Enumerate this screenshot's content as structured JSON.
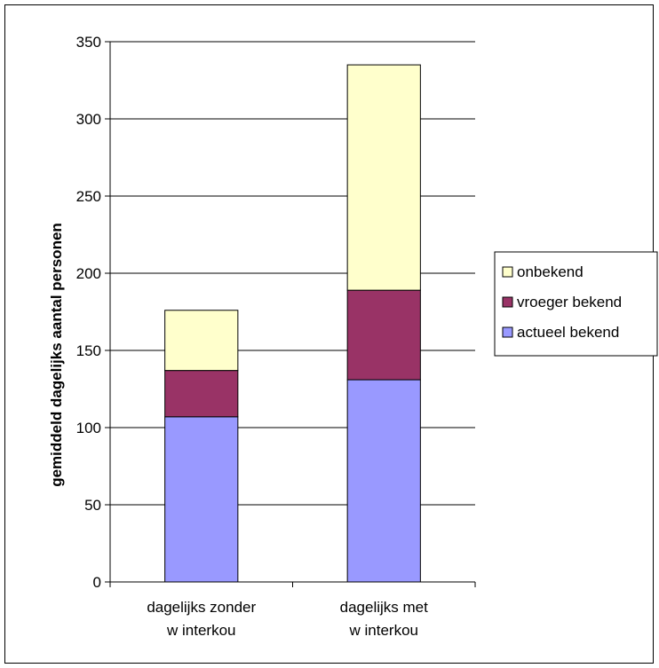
{
  "chart_data": {
    "type": "bar",
    "stacked": true,
    "categories": [
      [
        "dagelijks zonder",
        "w interkou"
      ],
      [
        "dagelijks met",
        "w interkou"
      ]
    ],
    "series": [
      {
        "name": "actueel bekend",
        "values": [
          107,
          131
        ],
        "color": "#9999ff"
      },
      {
        "name": "vroeger bekend",
        "values": [
          30,
          58
        ],
        "color": "#993366"
      },
      {
        "name": "onbekend",
        "values": [
          39,
          146
        ],
        "color": "#ffffcc"
      }
    ],
    "title": "",
    "xlabel": "",
    "ylabel": "gemiddeld dagelijks aantal personen",
    "ylim": [
      0,
      350
    ],
    "yticks": [
      0,
      50,
      100,
      150,
      200,
      250,
      300,
      350
    ],
    "legend_position": "right",
    "legend_order": [
      "onbekend",
      "vroeger bekend",
      "actueel bekend"
    ],
    "grid": "horizontal"
  }
}
